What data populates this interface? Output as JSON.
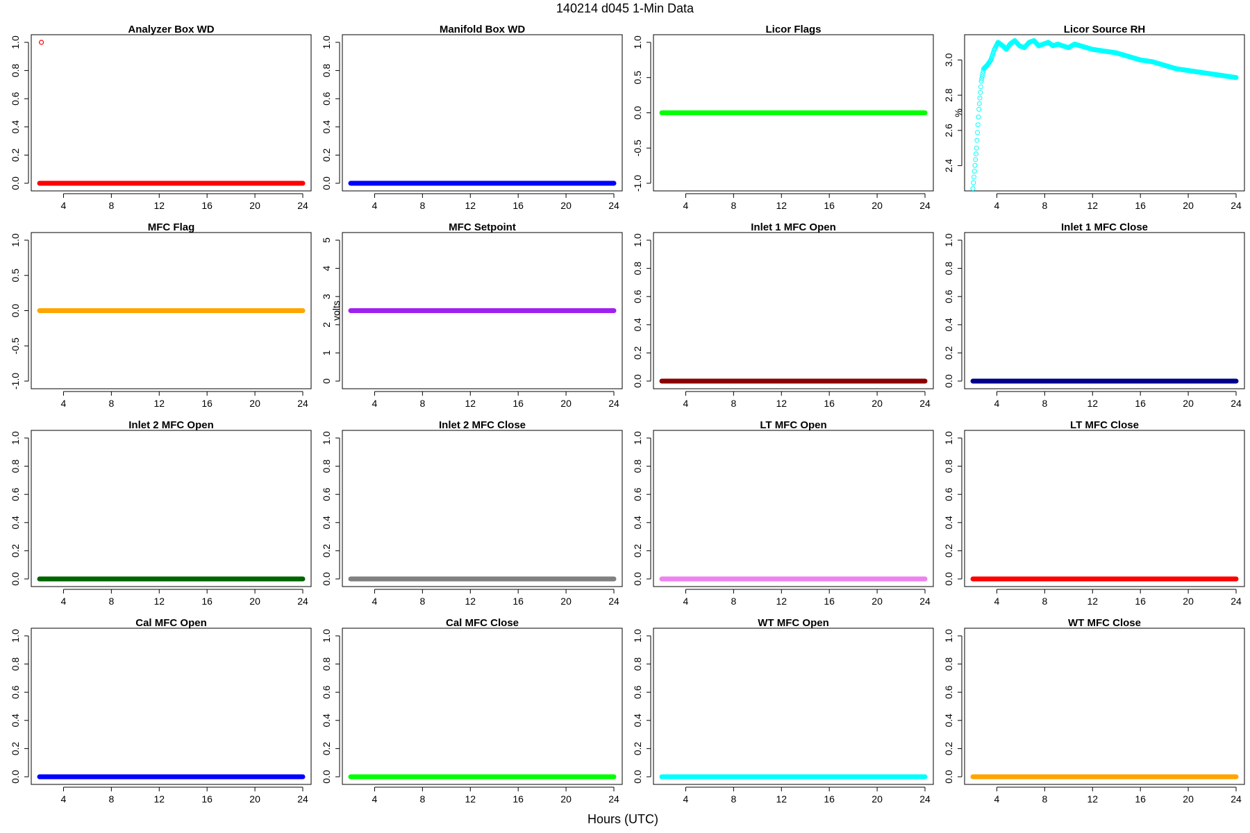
{
  "figure": {
    "title": "140214   d045   1-Min Data",
    "xlabel": "Hours (UTC)"
  },
  "chart_data": [
    {
      "type": "scatter",
      "title": "Analyzer Box WD",
      "ylabel": "",
      "color": "#ff0000",
      "ylim": [
        0,
        1
      ],
      "yticks": [
        0,
        0.2,
        0.4,
        0.6,
        0.8,
        1
      ],
      "ytick_labels": [
        "0.0",
        "0.2",
        "0.4",
        "0.6",
        "0.8",
        "1.0"
      ],
      "xlim": [
        2,
        24
      ],
      "xticks": [
        4,
        8,
        12,
        16,
        20,
        24
      ],
      "series": [
        {
          "x_range": [
            2,
            24
          ],
          "value": 0
        }
      ],
      "points": [
        {
          "x": 2.15,
          "y": 1
        }
      ]
    },
    {
      "type": "scatter",
      "title": "Manifold Box WD",
      "ylabel": "",
      "color": "#0000ff",
      "ylim": [
        0,
        1
      ],
      "yticks": [
        0,
        0.2,
        0.4,
        0.6,
        0.8,
        1
      ],
      "ytick_labels": [
        "0.0",
        "0.2",
        "0.4",
        "0.6",
        "0.8",
        "1.0"
      ],
      "xlim": [
        2,
        24
      ],
      "xticks": [
        4,
        8,
        12,
        16,
        20,
        24
      ],
      "series": [
        {
          "x_range": [
            2,
            24
          ],
          "value": 0
        }
      ]
    },
    {
      "type": "scatter",
      "title": "Licor Flags",
      "ylabel": "",
      "color": "#00ff00",
      "ylim": [
        -1,
        1
      ],
      "yticks": [
        -1,
        -0.5,
        0,
        0.5,
        1
      ],
      "ytick_labels": [
        "-1.0",
        "-0.5",
        "0.0",
        "0.5",
        "1.0"
      ],
      "xlim": [
        2,
        24
      ],
      "xticks": [
        4,
        8,
        12,
        16,
        20,
        24
      ],
      "series": [
        {
          "x_range": [
            2,
            24
          ],
          "value": 0
        }
      ]
    },
    {
      "type": "scatter",
      "title": "Licor Source RH",
      "ylabel": "%",
      "color": "#00ffff",
      "ylim": [
        2.3,
        3.1
      ],
      "yticks": [
        2.4,
        2.6,
        2.8,
        3.0
      ],
      "ytick_labels": [
        "2.4",
        "2.6",
        "2.8",
        "3.0"
      ],
      "xlim": [
        2,
        24
      ],
      "xticks": [
        4,
        8,
        12,
        16,
        20,
        24
      ],
      "points": [
        {
          "x": 2.0,
          "y": 2.27
        },
        {
          "x": 2.3,
          "y": 2.5
        },
        {
          "x": 2.5,
          "y": 2.72
        },
        {
          "x": 2.7,
          "y": 2.88
        },
        {
          "x": 2.9,
          "y": 2.95
        },
        {
          "x": 3.2,
          "y": 2.97
        },
        {
          "x": 3.5,
          "y": 3.0
        },
        {
          "x": 3.8,
          "y": 3.06
        },
        {
          "x": 4.1,
          "y": 3.1
        },
        {
          "x": 4.5,
          "y": 3.08
        },
        {
          "x": 4.8,
          "y": 3.06
        },
        {
          "x": 5.1,
          "y": 3.09
        },
        {
          "x": 5.5,
          "y": 3.11
        },
        {
          "x": 5.9,
          "y": 3.08
        },
        {
          "x": 6.3,
          "y": 3.07
        },
        {
          "x": 6.7,
          "y": 3.1
        },
        {
          "x": 7.1,
          "y": 3.11
        },
        {
          "x": 7.5,
          "y": 3.08
        },
        {
          "x": 7.9,
          "y": 3.09
        },
        {
          "x": 8.3,
          "y": 3.1
        },
        {
          "x": 8.7,
          "y": 3.08
        },
        {
          "x": 9.1,
          "y": 3.09
        },
        {
          "x": 9.5,
          "y": 3.08
        },
        {
          "x": 10.0,
          "y": 3.07
        },
        {
          "x": 10.5,
          "y": 3.09
        },
        {
          "x": 11.0,
          "y": 3.08
        },
        {
          "x": 11.5,
          "y": 3.07
        },
        {
          "x": 12.0,
          "y": 3.06
        },
        {
          "x": 13.0,
          "y": 3.05
        },
        {
          "x": 14.0,
          "y": 3.04
        },
        {
          "x": 15.0,
          "y": 3.02
        },
        {
          "x": 16.0,
          "y": 3.0
        },
        {
          "x": 17.0,
          "y": 2.99
        },
        {
          "x": 18.0,
          "y": 2.97
        },
        {
          "x": 19.0,
          "y": 2.95
        },
        {
          "x": 20.0,
          "y": 2.94
        },
        {
          "x": 21.0,
          "y": 2.93
        },
        {
          "x": 22.0,
          "y": 2.92
        },
        {
          "x": 23.0,
          "y": 2.91
        },
        {
          "x": 24.0,
          "y": 2.9
        }
      ]
    },
    {
      "type": "scatter",
      "title": "MFC Flag",
      "ylabel": "",
      "color": "#ffa500",
      "ylim": [
        -1,
        1
      ],
      "yticks": [
        -1,
        -0.5,
        0,
        0.5,
        1
      ],
      "ytick_labels": [
        "-1.0",
        "-0.5",
        "0.0",
        "0.5",
        "1.0"
      ],
      "xlim": [
        2,
        24
      ],
      "xticks": [
        4,
        8,
        12,
        16,
        20,
        24
      ],
      "series": [
        {
          "x_range": [
            2,
            24
          ],
          "value": 0
        }
      ]
    },
    {
      "type": "scatter",
      "title": "MFC Setpoint",
      "ylabel": "volts",
      "color": "#a020f0",
      "ylim": [
        0,
        5
      ],
      "yticks": [
        0,
        1,
        2,
        3,
        4,
        5
      ],
      "ytick_labels": [
        "0",
        "1",
        "2",
        "3",
        "4",
        "5"
      ],
      "xlim": [
        2,
        24
      ],
      "xticks": [
        4,
        8,
        12,
        16,
        20,
        24
      ],
      "series": [
        {
          "x_range": [
            2,
            24
          ],
          "value": 2.5
        }
      ]
    },
    {
      "type": "scatter",
      "title": "Inlet 1 MFC Open",
      "ylabel": "",
      "color": "#8b0000",
      "ylim": [
        0,
        1
      ],
      "yticks": [
        0,
        0.2,
        0.4,
        0.6,
        0.8,
        1
      ],
      "ytick_labels": [
        "0.0",
        "0.2",
        "0.4",
        "0.6",
        "0.8",
        "1.0"
      ],
      "xlim": [
        2,
        24
      ],
      "xticks": [
        4,
        8,
        12,
        16,
        20,
        24
      ],
      "series": [
        {
          "x_range": [
            2,
            24
          ],
          "value": 0
        }
      ]
    },
    {
      "type": "scatter",
      "title": "Inlet 1 MFC Close",
      "ylabel": "",
      "color": "#00008b",
      "ylim": [
        0,
        1
      ],
      "yticks": [
        0,
        0.2,
        0.4,
        0.6,
        0.8,
        1
      ],
      "ytick_labels": [
        "0.0",
        "0.2",
        "0.4",
        "0.6",
        "0.8",
        "1.0"
      ],
      "xlim": [
        2,
        24
      ],
      "xticks": [
        4,
        8,
        12,
        16,
        20,
        24
      ],
      "series": [
        {
          "x_range": [
            2,
            24
          ],
          "value": 0
        }
      ]
    },
    {
      "type": "scatter",
      "title": "Inlet 2 MFC Open",
      "ylabel": "",
      "color": "#006400",
      "ylim": [
        0,
        1
      ],
      "yticks": [
        0,
        0.2,
        0.4,
        0.6,
        0.8,
        1
      ],
      "ytick_labels": [
        "0.0",
        "0.2",
        "0.4",
        "0.6",
        "0.8",
        "1.0"
      ],
      "xlim": [
        2,
        24
      ],
      "xticks": [
        4,
        8,
        12,
        16,
        20,
        24
      ],
      "series": [
        {
          "x_range": [
            2,
            24
          ],
          "value": 0
        }
      ]
    },
    {
      "type": "scatter",
      "title": "Inlet 2 MFC Close",
      "ylabel": "",
      "color": "#808080",
      "ylim": [
        0,
        1
      ],
      "yticks": [
        0,
        0.2,
        0.4,
        0.6,
        0.8,
        1
      ],
      "ytick_labels": [
        "0.0",
        "0.2",
        "0.4",
        "0.6",
        "0.8",
        "1.0"
      ],
      "xlim": [
        2,
        24
      ],
      "xticks": [
        4,
        8,
        12,
        16,
        20,
        24
      ],
      "series": [
        {
          "x_range": [
            2,
            24
          ],
          "value": 0
        }
      ]
    },
    {
      "type": "scatter",
      "title": "LT MFC Open",
      "ylabel": "",
      "color": "#ee82ee",
      "ylim": [
        0,
        1
      ],
      "yticks": [
        0,
        0.2,
        0.4,
        0.6,
        0.8,
        1
      ],
      "ytick_labels": [
        "0.0",
        "0.2",
        "0.4",
        "0.6",
        "0.8",
        "1.0"
      ],
      "xlim": [
        2,
        24
      ],
      "xticks": [
        4,
        8,
        12,
        16,
        20,
        24
      ],
      "series": [
        {
          "x_range": [
            2,
            24
          ],
          "value": 0
        }
      ]
    },
    {
      "type": "scatter",
      "title": "LT MFC Close",
      "ylabel": "",
      "color": "#ff0000",
      "ylim": [
        0,
        1
      ],
      "yticks": [
        0,
        0.2,
        0.4,
        0.6,
        0.8,
        1
      ],
      "ytick_labels": [
        "0.0",
        "0.2",
        "0.4",
        "0.6",
        "0.8",
        "1.0"
      ],
      "xlim": [
        2,
        24
      ],
      "xticks": [
        4,
        8,
        12,
        16,
        20,
        24
      ],
      "series": [
        {
          "x_range": [
            2,
            24
          ],
          "value": 0
        }
      ]
    },
    {
      "type": "scatter",
      "title": "Cal MFC Open",
      "ylabel": "",
      "color": "#0000ff",
      "ylim": [
        0,
        1
      ],
      "yticks": [
        0,
        0.2,
        0.4,
        0.6,
        0.8,
        1
      ],
      "ytick_labels": [
        "0.0",
        "0.2",
        "0.4",
        "0.6",
        "0.8",
        "1.0"
      ],
      "xlim": [
        2,
        24
      ],
      "xticks": [
        4,
        8,
        12,
        16,
        20,
        24
      ],
      "series": [
        {
          "x_range": [
            2,
            24
          ],
          "value": 0
        }
      ]
    },
    {
      "type": "scatter",
      "title": "Cal MFC Close",
      "ylabel": "",
      "color": "#00ff00",
      "ylim": [
        0,
        1
      ],
      "yticks": [
        0,
        0.2,
        0.4,
        0.6,
        0.8,
        1
      ],
      "ytick_labels": [
        "0.0",
        "0.2",
        "0.4",
        "0.6",
        "0.8",
        "1.0"
      ],
      "xlim": [
        2,
        24
      ],
      "xticks": [
        4,
        8,
        12,
        16,
        20,
        24
      ],
      "series": [
        {
          "x_range": [
            2,
            24
          ],
          "value": 0
        }
      ]
    },
    {
      "type": "scatter",
      "title": "WT MFC Open",
      "ylabel": "",
      "color": "#00ffff",
      "ylim": [
        0,
        1
      ],
      "yticks": [
        0,
        0.2,
        0.4,
        0.6,
        0.8,
        1
      ],
      "ytick_labels": [
        "0.0",
        "0.2",
        "0.4",
        "0.6",
        "0.8",
        "1.0"
      ],
      "xlim": [
        2,
        24
      ],
      "xticks": [
        4,
        8,
        12,
        16,
        20,
        24
      ],
      "series": [
        {
          "x_range": [
            2,
            24
          ],
          "value": 0
        }
      ]
    },
    {
      "type": "scatter",
      "title": "WT MFC Close",
      "ylabel": "",
      "color": "#ffa500",
      "ylim": [
        0,
        1
      ],
      "yticks": [
        0,
        0.2,
        0.4,
        0.6,
        0.8,
        1
      ],
      "ytick_labels": [
        "0.0",
        "0.2",
        "0.4",
        "0.6",
        "0.8",
        "1.0"
      ],
      "xlim": [
        2,
        24
      ],
      "xticks": [
        4,
        8,
        12,
        16,
        20,
        24
      ],
      "series": [
        {
          "x_range": [
            2,
            24
          ],
          "value": 0
        }
      ]
    }
  ]
}
